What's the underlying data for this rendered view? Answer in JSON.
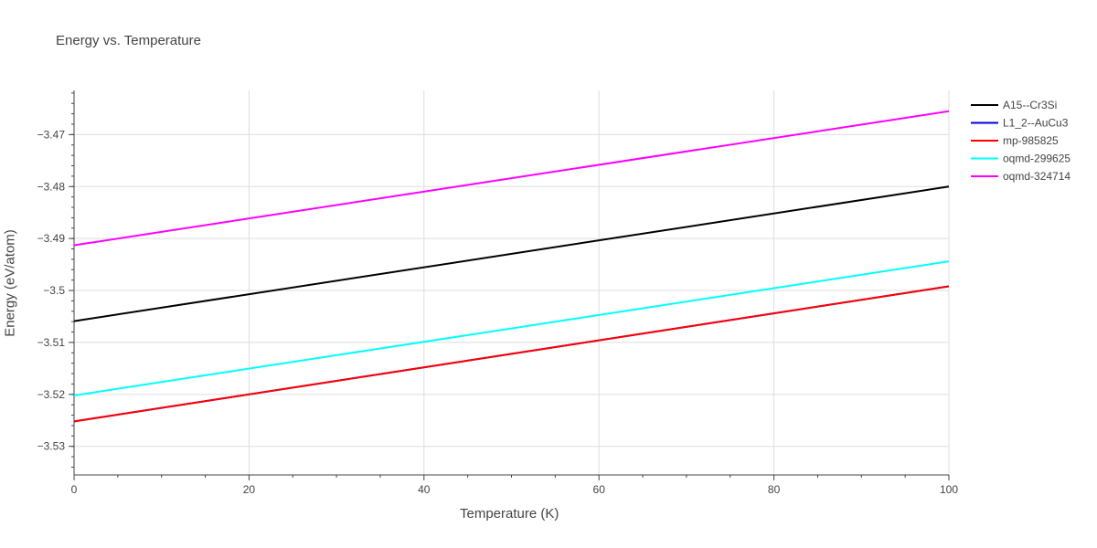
{
  "chart_data": {
    "type": "line",
    "title": "Energy vs. Temperature",
    "xlabel": "Temperature (K)",
    "ylabel": "Energy (eV/atom)",
    "xlim": [
      0,
      100
    ],
    "ylim": [
      -3.5355,
      -3.4615
    ],
    "x_ticks": [
      0,
      20,
      40,
      60,
      80,
      100
    ],
    "x_tick_labels": [
      "0",
      "20",
      "40",
      "60",
      "80",
      "100"
    ],
    "y_ticks": [
      -3.53,
      -3.52,
      -3.51,
      -3.5,
      -3.49,
      -3.48,
      -3.47
    ],
    "y_tick_labels": [
      "−3.53",
      "−3.52",
      "−3.51",
      "−3.5",
      "−3.49",
      "−3.48",
      "−3.47"
    ],
    "grid": true,
    "legend_position": "top-right",
    "series": [
      {
        "name": "A15--Cr3Si",
        "color": "#000000",
        "x": [
          0,
          100
        ],
        "y": [
          -3.5059,
          -3.48
        ]
      },
      {
        "name": "L1_2--AuCu3",
        "color": "#0000dd",
        "x": [
          0,
          100
        ],
        "y": [
          -3.5252,
          -3.4992
        ]
      },
      {
        "name": "mp-985825",
        "color": "#ff0000",
        "x": [
          0,
          100
        ],
        "y": [
          -3.5252,
          -3.4992
        ]
      },
      {
        "name": "oqmd-299625",
        "color": "#00ffff",
        "x": [
          0,
          100
        ],
        "y": [
          -3.5202,
          -3.4944
        ]
      },
      {
        "name": "oqmd-324714",
        "color": "#ff00ff",
        "x": [
          0,
          100
        ],
        "y": [
          -3.4913,
          -3.4655
        ]
      }
    ]
  }
}
